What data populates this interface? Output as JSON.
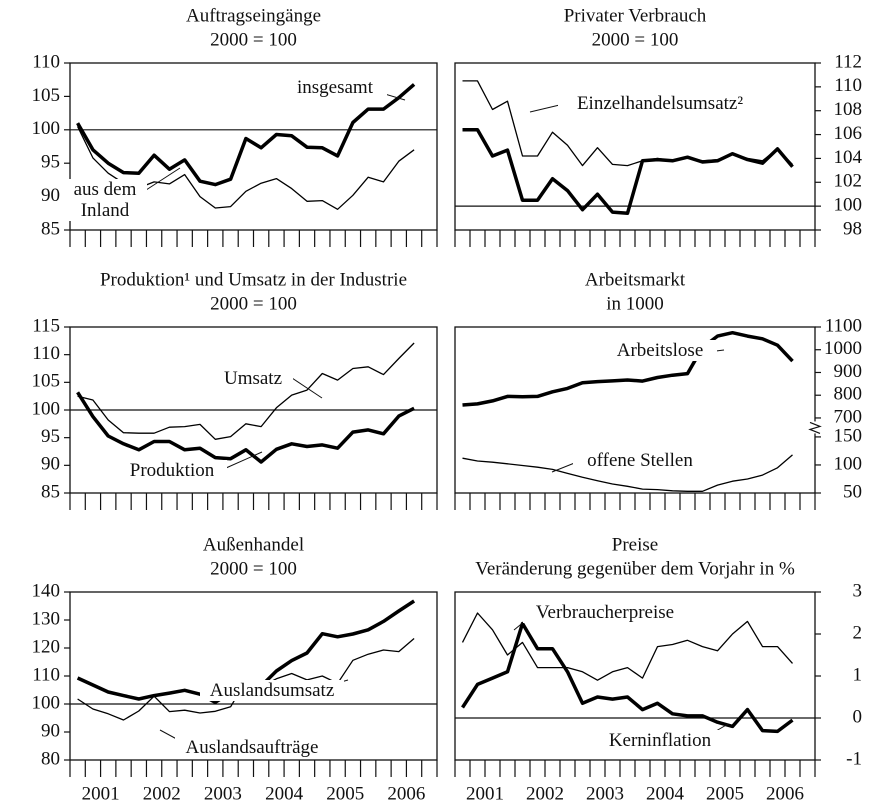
{
  "chart_data": [
    {
      "type": "line",
      "title": "Auftragseingänge",
      "subtitle": "2000 = 100",
      "yaxis_side": "left",
      "x": [
        2001.125,
        2001.375,
        2001.625,
        2001.875,
        2002.125,
        2002.375,
        2002.625,
        2002.875,
        2003.125,
        2003.375,
        2003.625,
        2003.875,
        2004.125,
        2004.375,
        2004.625,
        2004.875,
        2005.125,
        2005.375,
        2005.625,
        2005.875,
        2006.125,
        2006.375,
        2006.625
      ],
      "xlim": [
        2001,
        2007
      ],
      "ylim": [
        85,
        110
      ],
      "yticks": [
        85,
        90,
        95,
        100,
        105,
        110
      ],
      "hline": 100,
      "series": [
        {
          "name": "insgesamt",
          "color": "#000000",
          "linewidth": 3.5,
          "values": [
            101,
            97,
            95,
            93.6,
            93.5,
            96.2,
            94.1,
            95.5,
            92.3,
            91.8,
            92.6,
            98.7,
            97.3,
            99.3,
            99.1,
            97.4,
            97.3,
            96.1,
            101.1,
            103.1,
            103.1,
            104.8,
            106.8
          ]
        },
        {
          "name": "aus dem Inland",
          "color": "#000000",
          "linewidth": 1.3,
          "values": [
            100.5,
            95.8,
            93.5,
            92,
            91.3,
            92.2,
            91.9,
            93.3,
            90,
            88.3,
            88.5,
            90.8,
            92,
            92.7,
            91.2,
            89.3,
            89.4,
            88.1,
            90.2,
            92.9,
            92.2,
            95.3,
            97
          ]
        }
      ]
    },
    {
      "type": "line",
      "title": "Privater Verbrauch",
      "subtitle": "2000 = 100",
      "yaxis_side": "right",
      "x": [
        2001.125,
        2001.375,
        2001.625,
        2001.875,
        2002.125,
        2002.375,
        2002.625,
        2002.875,
        2003.125,
        2003.375,
        2003.625,
        2003.875,
        2004.125,
        2004.375,
        2004.625,
        2004.875,
        2005.125,
        2005.375,
        2005.625,
        2005.875,
        2006.125,
        2006.375,
        2006.625
      ],
      "xlim": [
        2001,
        2007
      ],
      "ylim": [
        98,
        112
      ],
      "yticks": [
        98,
        100,
        102,
        104,
        106,
        108,
        110,
        112
      ],
      "hline": 100,
      "series": [
        {
          "name": "Einzelhandelsumsatz²",
          "color": "#000000",
          "linewidth": 1.3,
          "values": [
            110.5,
            110.5,
            108.1,
            108.8,
            104.2,
            104.2,
            106.2,
            105.1,
            103.4,
            104.9,
            103.5,
            103.4,
            103.8,
            104,
            103.8,
            104.1,
            103.8,
            103.9,
            104.4,
            104,
            103.8,
            104.8,
            103.5
          ]
        },
        {
          "color": "#000000",
          "linewidth": 3.5,
          "values": [
            106.4,
            106.4,
            104.2,
            104.7,
            100.5,
            100.5,
            102.3,
            101.3,
            99.7,
            101,
            99.5,
            99.4,
            103.8,
            103.9,
            103.8,
            104.1,
            103.7,
            103.8,
            104.4,
            103.9,
            103.6,
            104.8,
            103.3
          ]
        }
      ]
    },
    {
      "type": "line",
      "title": "Produktion¹ und Umsatz in der Industrie",
      "subtitle": "2000 = 100",
      "yaxis_side": "left",
      "x": [
        2001.125,
        2001.375,
        2001.625,
        2001.875,
        2002.125,
        2002.375,
        2002.625,
        2002.875,
        2003.125,
        2003.375,
        2003.625,
        2003.875,
        2004.125,
        2004.375,
        2004.625,
        2004.875,
        2005.125,
        2005.375,
        2005.625,
        2005.875,
        2006.125,
        2006.375,
        2006.625
      ],
      "xlim": [
        2001,
        2007
      ],
      "ylim": [
        85,
        115
      ],
      "yticks": [
        85,
        90,
        95,
        100,
        105,
        110,
        115
      ],
      "hline": 100,
      "series": [
        {
          "name": "Umsatz",
          "color": "#000000",
          "linewidth": 1.3,
          "values": [
            102.5,
            101.8,
            98.2,
            95.9,
            95.8,
            95.8,
            96.9,
            97,
            97.4,
            94.7,
            95.2,
            97.5,
            97,
            100.4,
            102.7,
            103.6,
            106.6,
            105.4,
            107.5,
            107.8,
            106.4,
            109.3,
            112.1
          ]
        },
        {
          "name": "Produktion",
          "color": "#000000",
          "linewidth": 3.5,
          "values": [
            103.2,
            98.8,
            95.3,
            93.9,
            92.8,
            94.3,
            94.3,
            92.8,
            93.1,
            91.4,
            91.2,
            92.8,
            90.6,
            92.9,
            93.9,
            93.4,
            93.7,
            93.1,
            96,
            96.4,
            95.7,
            98.9,
            100.3
          ]
        }
      ]
    },
    {
      "type": "line",
      "title": "Arbeitsmarkt",
      "subtitle": "in 1000",
      "yaxis_side": "right",
      "axis_break": true,
      "x": [
        2001.125,
        2001.375,
        2001.625,
        2001.875,
        2002.125,
        2002.375,
        2002.625,
        2002.875,
        2003.125,
        2003.375,
        2003.625,
        2003.875,
        2004.125,
        2004.375,
        2004.625,
        2004.875,
        2005.125,
        2005.375,
        2005.625,
        2005.875,
        2006.125,
        2006.375,
        2006.625
      ],
      "xlim": [
        2001,
        2007
      ],
      "ylim": [
        370,
        1100
      ],
      "yticks": [
        700,
        800,
        900,
        1000,
        1100
      ],
      "y2lim": [
        50,
        346
      ],
      "y2ticks": [
        50,
        100,
        150
      ],
      "series": [
        {
          "name": "Arbeitslose",
          "color": "#000000",
          "linewidth": 3.5,
          "values": [
            757,
            762,
            775,
            795,
            793,
            795,
            815,
            830,
            855,
            860,
            863,
            867,
            862,
            878,
            888,
            895,
            1010,
            1060,
            1075,
            1060,
            1048,
            1020,
            950
          ]
        },
        {
          "name": "offene Stellen",
          "color": "#000000",
          "linewidth": 1.3,
          "axis": "y2",
          "values": [
            112,
            107,
            105,
            102,
            99,
            96,
            92,
            85,
            78,
            72,
            66,
            62,
            57,
            56,
            54,
            53,
            53,
            64,
            71,
            75,
            82,
            95,
            118
          ]
        }
      ]
    },
    {
      "type": "line",
      "title": "Außenhandel",
      "subtitle": "2000 = 100",
      "yaxis_side": "left",
      "x": [
        2001.125,
        2001.375,
        2001.625,
        2001.875,
        2002.125,
        2002.375,
        2002.625,
        2002.875,
        2003.125,
        2003.375,
        2003.625,
        2003.875,
        2004.125,
        2004.375,
        2004.625,
        2004.875,
        2005.125,
        2005.375,
        2005.625,
        2005.875,
        2006.125,
        2006.375,
        2006.625
      ],
      "xlim": [
        2001,
        2007
      ],
      "xticks": [
        {
          "value": 2001.5,
          "label": "2001"
        },
        {
          "value": 2002.5,
          "label": "2002"
        },
        {
          "value": 2003.5,
          "label": "2003"
        },
        {
          "value": 2004.5,
          "label": "2004"
        },
        {
          "value": 2005.5,
          "label": "2005"
        },
        {
          "value": 2006.5,
          "label": "2006"
        }
      ],
      "ylim": [
        80,
        140
      ],
      "yticks": [
        80,
        90,
        100,
        110,
        120,
        130,
        140
      ],
      "hline": 100,
      "series": [
        {
          "name": "Auslandsumsatz",
          "color": "#000000",
          "linewidth": 3.5,
          "values": [
            109.3,
            106.8,
            104.3,
            103,
            101.8,
            103,
            103.9,
            104.9,
            103.5,
            100.6,
            104,
            107.6,
            106.4,
            111.8,
            115.5,
            118.2,
            125.1,
            124,
            125,
            126.5,
            129.5,
            133.2,
            136.8
          ]
        },
        {
          "name": "Auslandsaufträge",
          "color": "#000000",
          "linewidth": 1.3,
          "values": [
            101.8,
            98.2,
            96.5,
            94.3,
            97.5,
            102.8,
            97.3,
            97.8,
            96.8,
            97.4,
            99,
            108.2,
            106.2,
            109,
            110.9,
            108.6,
            110,
            107.4,
            115.6,
            117.8,
            119.3,
            118.7,
            123.4
          ]
        }
      ]
    },
    {
      "type": "line",
      "title": "Preise",
      "subtitle": "Veränderung gegenüber dem Vorjahr in %",
      "yaxis_side": "right",
      "x": [
        2001.125,
        2001.375,
        2001.625,
        2001.875,
        2002.125,
        2002.375,
        2002.625,
        2002.875,
        2003.125,
        2003.375,
        2003.625,
        2003.875,
        2004.125,
        2004.375,
        2004.625,
        2004.875,
        2005.125,
        2005.375,
        2005.625,
        2005.875,
        2006.125,
        2006.375,
        2006.625
      ],
      "xlim": [
        2001,
        2007
      ],
      "xticks": [
        {
          "value": 2001.5,
          "label": "2001"
        },
        {
          "value": 2002.5,
          "label": "2002"
        },
        {
          "value": 2003.5,
          "label": "2003"
        },
        {
          "value": 2004.5,
          "label": "2004"
        },
        {
          "value": 2005.5,
          "label": "2005"
        },
        {
          "value": 2006.5,
          "label": "2006"
        }
      ],
      "ylim": [
        -1,
        3
      ],
      "yticks": [
        -1,
        0,
        1,
        2,
        3
      ],
      "hline": 0,
      "series": [
        {
          "name": "Verbraucherpreise",
          "color": "#000000",
          "linewidth": 1.3,
          "values": [
            1.8,
            2.5,
            2.1,
            1.5,
            1.8,
            1.2,
            1.2,
            1.2,
            1.1,
            0.9,
            1.1,
            1.2,
            0.95,
            1.7,
            1.75,
            1.85,
            1.7,
            1.6,
            2,
            2.3,
            1.7,
            1.7,
            1.3
          ]
        },
        {
          "name": "Kerninflation",
          "color": "#000000",
          "linewidth": 3.5,
          "values": [
            0.25,
            0.8,
            0.95,
            1.1,
            2.25,
            1.65,
            1.65,
            1.1,
            0.35,
            0.5,
            0.45,
            0.5,
            0.2,
            0.35,
            0.1,
            0.05,
            0.05,
            -0.1,
            -0.2,
            0.2,
            -0.3,
            -0.32,
            -0.05
          ]
        }
      ]
    }
  ]
}
